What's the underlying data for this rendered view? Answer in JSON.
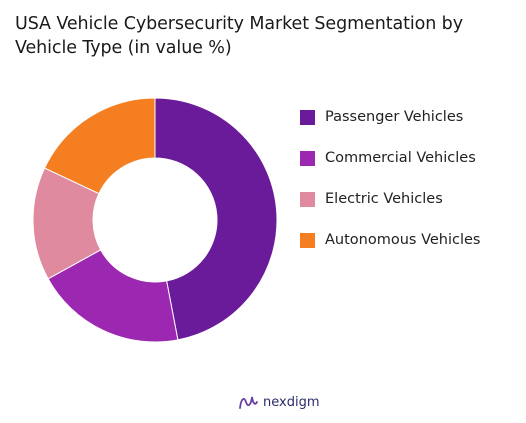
{
  "chart_data": {
    "type": "pie",
    "title": "USA Vehicle Cybersecurity Market Segmentation by Vehicle Type (in value %)",
    "categories": [
      "Passenger Vehicles",
      "Commercial Vehicles",
      "Electric Vehicles",
      "Autonomous Vehicles"
    ],
    "values": [
      47,
      20,
      15,
      18
    ],
    "colors": [
      "#6a1b9a",
      "#9c27b0",
      "#e08aa0",
      "#f57f20"
    ],
    "hole": "center",
    "legend_position": "right"
  },
  "brand": {
    "name": "nexdigm",
    "icon": "nexdigm-logo-icon",
    "color": "#2b2b6e"
  }
}
